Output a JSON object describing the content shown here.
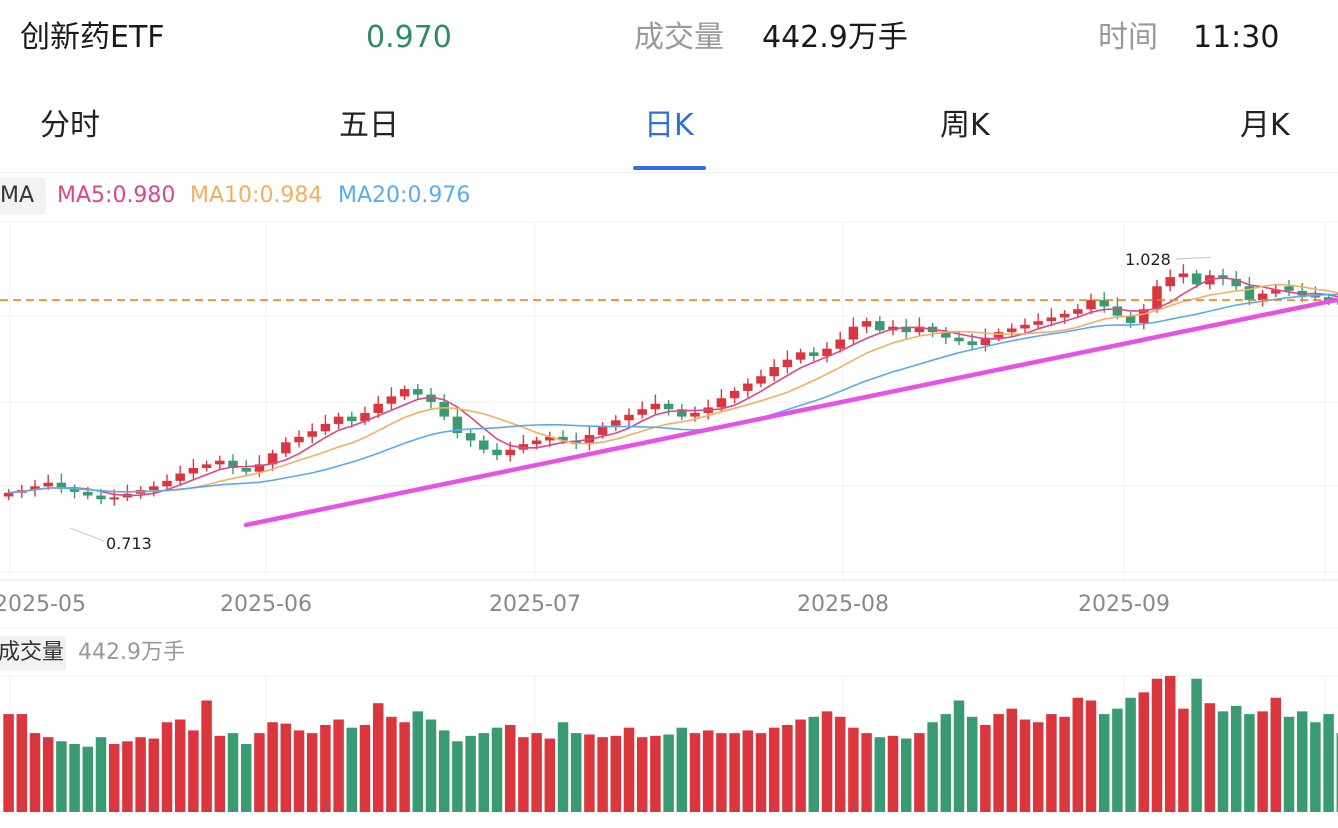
{
  "header": {
    "name": "创新药ETF",
    "price": "0.970",
    "volume_label": "成交量",
    "volume": "442.9万手",
    "time_label": "时间",
    "time": "11:30"
  },
  "tabs": [
    {
      "label": "分时",
      "active": false
    },
    {
      "label": "五日",
      "active": false
    },
    {
      "label": "日K",
      "active": true
    },
    {
      "label": "周K",
      "active": false
    },
    {
      "label": "月K",
      "active": false
    }
  ],
  "ma": {
    "tag": "MA",
    "ma5": "MA5:0.980",
    "ma10": "MA10:0.984",
    "ma20": "MA20:0.976"
  },
  "volume_panel": {
    "tag": "成交量",
    "value": "442.9万手"
  },
  "colors": {
    "up": "#d9363e",
    "down": "#3a9a72",
    "ma5": "#e0458a",
    "ma10": "#f0b060",
    "ma20": "#5aaaf0",
    "trendline": "#e652e6",
    "ref_line": "#f08020",
    "active_tab": "#2f6fe0"
  },
  "chart_data": {
    "type": "candlestick",
    "x_ticks": [
      "2025-05",
      "2025-06",
      "2025-07",
      "2025-08",
      "2025-09"
    ],
    "high_label": "1.028",
    "low_label": "0.713",
    "ylim": [
      0.67,
      1.06
    ],
    "ref_line_value": 0.975,
    "trendline": {
      "start": [
        "2025-05-29",
        0.73
      ],
      "end": [
        "2025-09-30",
        0.975
      ]
    },
    "close": [
      0.765,
      0.768,
      0.772,
      0.776,
      0.77,
      0.766,
      0.762,
      0.758,
      0.76,
      0.764,
      0.768,
      0.772,
      0.778,
      0.786,
      0.792,
      0.796,
      0.8,
      0.792,
      0.788,
      0.796,
      0.808,
      0.82,
      0.826,
      0.832,
      0.84,
      0.848,
      0.843,
      0.852,
      0.862,
      0.87,
      0.878,
      0.872,
      0.864,
      0.848,
      0.83,
      0.822,
      0.812,
      0.806,
      0.812,
      0.818,
      0.822,
      0.826,
      0.822,
      0.818,
      0.828,
      0.838,
      0.844,
      0.85,
      0.856,
      0.862,
      0.856,
      0.848,
      0.852,
      0.858,
      0.868,
      0.876,
      0.884,
      0.892,
      0.902,
      0.91,
      0.918,
      0.914,
      0.922,
      0.932,
      0.946,
      0.952,
      0.942,
      0.946,
      0.94,
      0.946,
      0.94,
      0.934,
      0.93,
      0.926,
      0.934,
      0.94,
      0.944,
      0.948,
      0.952,
      0.956,
      0.96,
      0.965,
      0.975,
      0.968,
      0.958,
      0.95,
      0.965,
      0.99,
      1.0,
      1.004,
      0.992,
      1.002,
      0.998,
      0.99,
      0.975,
      0.982,
      0.986,
      0.985,
      0.98,
      0.978,
      0.975,
      0.97
    ],
    "volume": [
      0.72,
      0.72,
      0.58,
      0.55,
      0.52,
      0.5,
      0.48,
      0.55,
      0.5,
      0.52,
      0.55,
      0.54,
      0.66,
      0.68,
      0.6,
      0.82,
      0.56,
      0.58,
      0.5,
      0.58,
      0.66,
      0.65,
      0.6,
      0.58,
      0.64,
      0.68,
      0.62,
      0.64,
      0.8,
      0.7,
      0.66,
      0.74,
      0.68,
      0.6,
      0.52,
      0.56,
      0.58,
      0.62,
      0.64,
      0.55,
      0.58,
      0.54,
      0.66,
      0.58,
      0.57,
      0.55,
      0.56,
      0.62,
      0.55,
      0.56,
      0.57,
      0.62,
      0.58,
      0.6,
      0.58,
      0.58,
      0.6,
      0.58,
      0.62,
      0.64,
      0.68,
      0.7,
      0.74,
      0.7,
      0.62,
      0.58,
      0.55,
      0.56,
      0.54,
      0.58,
      0.66,
      0.72,
      0.82,
      0.7,
      0.64,
      0.72,
      0.76,
      0.68,
      0.66,
      0.72,
      0.7,
      0.84,
      0.82,
      0.72,
      0.76,
      0.84,
      0.88,
      0.98,
      1.0,
      0.76,
      0.98,
      0.8,
      0.74,
      0.78,
      0.72,
      0.74,
      0.84,
      0.7,
      0.74,
      0.66,
      0.72,
      0.58
    ],
    "volume_unit_label": "442.9万手"
  }
}
